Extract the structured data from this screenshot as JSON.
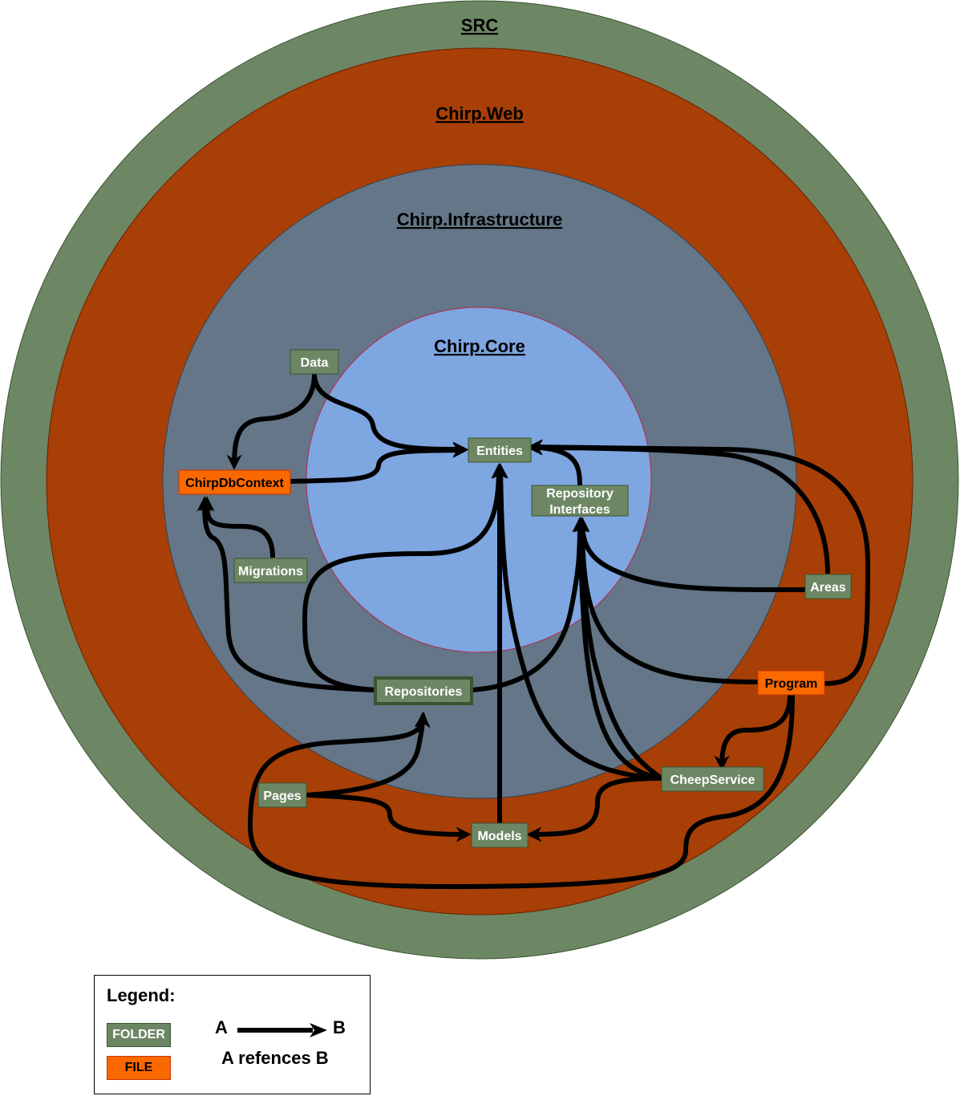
{
  "rings": {
    "src": {
      "label": "SRC",
      "color": "#6d8764"
    },
    "web": {
      "label": "Chirp.Web",
      "color": "#a83f06"
    },
    "infrastructure": {
      "label": "Chirp.Infrastructure",
      "color": "#647687"
    },
    "core": {
      "label": "Chirp.Core",
      "color": "#7ea6e0"
    }
  },
  "nodes": {
    "data": {
      "label": "Data",
      "kind": "folder"
    },
    "chirpdbcontext": {
      "label": "ChirpDbContext",
      "kind": "file"
    },
    "entities": {
      "label": "Entities",
      "kind": "folder"
    },
    "repo_interfaces": {
      "label_line1": "Repository",
      "label_line2": "Interfaces",
      "kind": "folder"
    },
    "migrations": {
      "label": "Migrations",
      "kind": "folder"
    },
    "areas": {
      "label": "Areas",
      "kind": "folder"
    },
    "repositories": {
      "label": "Repositories",
      "kind": "folder"
    },
    "program": {
      "label": "Program",
      "kind": "file"
    },
    "cheepservice": {
      "label": "CheepService",
      "kind": "folder"
    },
    "pages": {
      "label": "Pages",
      "kind": "folder"
    },
    "models": {
      "label": "Models",
      "kind": "folder"
    }
  },
  "colors": {
    "folder_fill": "#6d8764",
    "folder_stroke": "#3a5431",
    "file_fill": "#fa6800",
    "file_stroke": "#c73500",
    "edge": "#000000"
  },
  "legend": {
    "title": "Legend:",
    "folder_label": "FOLDER",
    "file_label": "FILE",
    "arrow_from": "A",
    "arrow_to": "B",
    "arrow_description": "A refences B"
  }
}
